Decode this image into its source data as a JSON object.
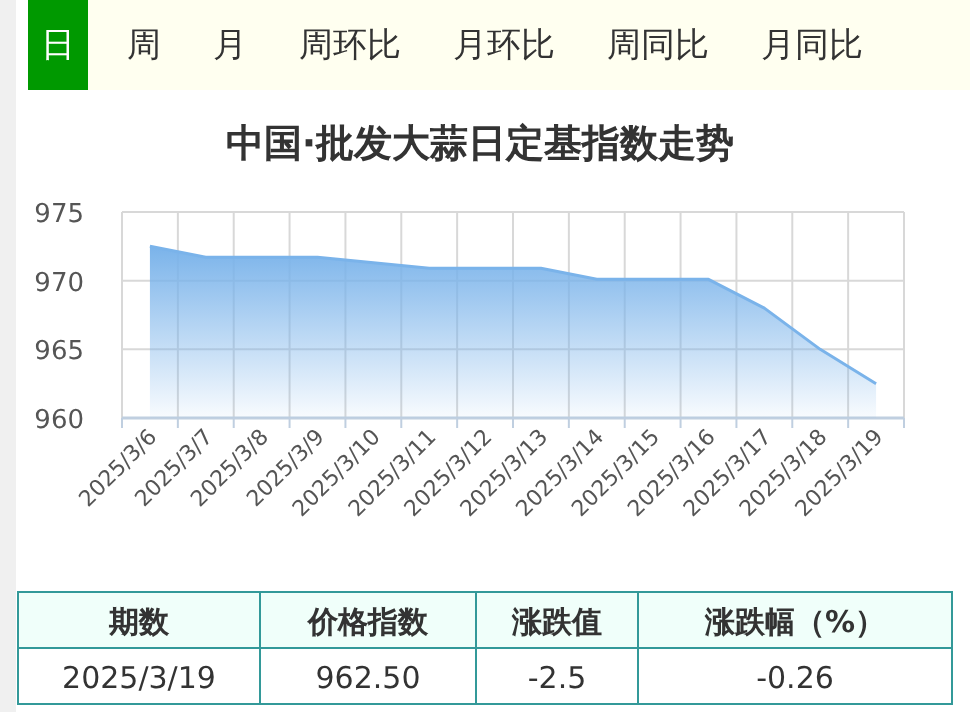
{
  "chart_data": {
    "type": "area",
    "title": "中国·批发大蒜日定基指数走势",
    "categories": [
      "2025/3/6",
      "2025/3/7",
      "2025/3/8",
      "2025/3/9",
      "2025/3/10",
      "2025/3/11",
      "2025/3/12",
      "2025/3/13",
      "2025/3/14",
      "2025/3/15",
      "2025/3/16",
      "2025/3/17",
      "2025/3/18",
      "2025/3/19"
    ],
    "series": [
      {
        "color": "#7ab3ea",
        "values": [
          972.5,
          971.7,
          971.7,
          971.7,
          971.3,
          970.9,
          970.9,
          970.9,
          970.1,
          970.1,
          970.1,
          968.0,
          965.0,
          962.5
        ]
      }
    ],
    "ylim": [
      960,
      975
    ],
    "yticks": [
      960,
      965,
      970,
      975
    ],
    "grid": true,
    "annotations": [
      "日",
      "周",
      "月",
      "周环比",
      "月环比",
      "周同比",
      "月同比",
      "期数",
      "价格指数",
      "涨跌值",
      "涨跌幅（%）",
      "2025/3/19",
      "962.50",
      "-2.5",
      "-0.26"
    ]
  }
}
